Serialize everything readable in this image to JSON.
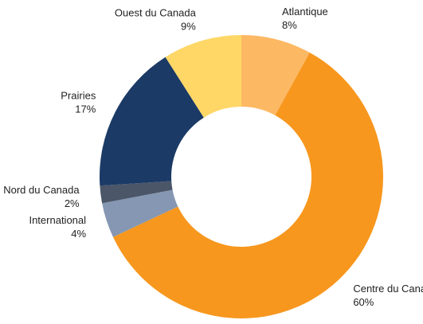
{
  "chart_data": {
    "type": "donut",
    "categories": [
      "Atlantique",
      "Centre du Canada",
      "International",
      "Nord du Canada",
      "Prairies",
      "Ouest du Canada"
    ],
    "values": [
      8,
      60,
      4,
      2,
      17,
      9
    ],
    "value_labels": [
      "8%",
      "60%",
      "4%",
      "2%",
      "17%",
      "9%"
    ],
    "colors": [
      "#fdb863",
      "#f7971e",
      "#8597b2",
      "#4b5669",
      "#1b3a66",
      "#fed766"
    ]
  }
}
